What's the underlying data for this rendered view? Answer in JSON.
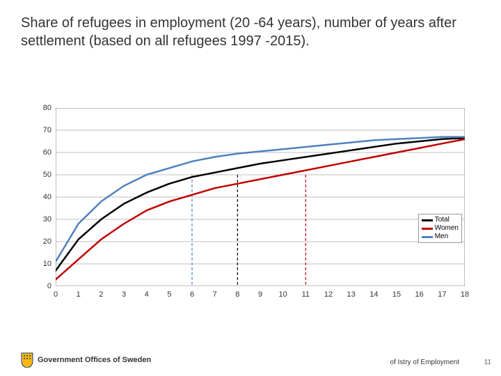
{
  "title": "Share of refugees in employment (20 -64 years), number of years after settlement (based on all refugees 1997 -2015).",
  "chart": {
    "type": "line",
    "background_color": "#ffffff",
    "grid_color": "#bfbfbf",
    "border_color": "#808080",
    "axis_fontsize": 11,
    "xlim": [
      0,
      18
    ],
    "ylim": [
      0,
      80
    ],
    "ytick_step": 10,
    "xtick_step": 1,
    "x_categories": [
      0,
      1,
      2,
      3,
      4,
      5,
      6,
      7,
      8,
      9,
      10,
      11,
      12,
      13,
      14,
      15,
      16,
      17,
      18
    ],
    "y_ticks": [
      0,
      10,
      20,
      30,
      40,
      50,
      60,
      70,
      80
    ],
    "series": [
      {
        "name": "Total",
        "color": "#000000",
        "line_width": 2.5,
        "values": [
          7,
          21,
          30,
          37,
          42,
          46,
          49,
          51,
          53,
          55,
          56.5,
          58,
          59.5,
          61,
          62.5,
          64,
          65,
          66,
          66.5
        ]
      },
      {
        "name": "Women",
        "color": "#c00000",
        "line_width": 2.5,
        "values": [
          3,
          12,
          21,
          28,
          34,
          38,
          41,
          44,
          46,
          48,
          50,
          52,
          54,
          56,
          58,
          60,
          62,
          64,
          66
        ]
      },
      {
        "name": "Men",
        "color": "#4f81bd",
        "line_width": 2.5,
        "values": [
          11,
          28,
          38,
          45,
          50,
          53,
          56,
          58,
          59.5,
          60.5,
          61.5,
          62.5,
          63.5,
          64.5,
          65.5,
          66,
          66.5,
          67,
          67
        ]
      }
    ],
    "reference_lines": [
      {
        "x": 6,
        "color": "#4f81bd",
        "dash": "4,3"
      },
      {
        "x": 8,
        "color": "#000000",
        "dash": "4,3"
      },
      {
        "x": 11,
        "color": "#c00000",
        "dash": "4,3"
      }
    ],
    "legend": {
      "position": "right-middle",
      "border_color": "#999999",
      "fontsize": 10,
      "items": [
        "Total",
        "Women",
        "Men"
      ]
    }
  },
  "footer": {
    "gov_text": "Government Offices of Sweden",
    "ministry_fragment": "of Istry of Employment",
    "page_number": "11"
  }
}
